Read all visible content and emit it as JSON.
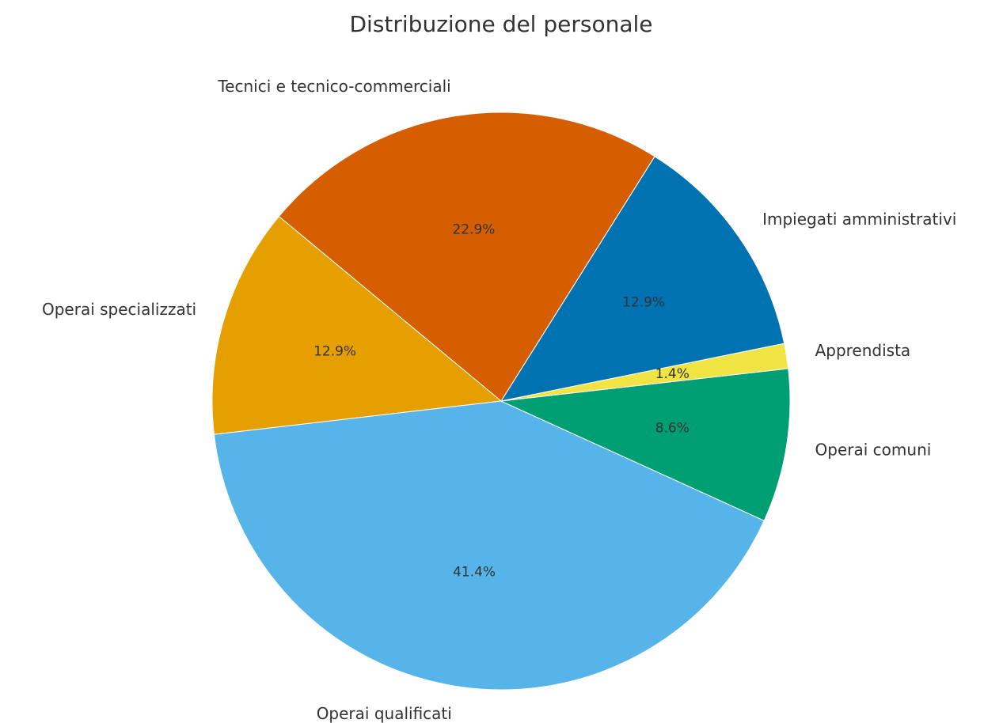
{
  "chart_data": {
    "type": "pie",
    "title": "Distribuzione del personale",
    "categories": [
      "Impiegati amministrativi",
      "Tecnici e tecnico-commerciali",
      "Operai specializzati",
      "Operai qualificati",
      "Operai comuni",
      "Apprendista"
    ],
    "values": [
      12.9,
      22.9,
      12.9,
      41.4,
      8.6,
      1.4
    ],
    "value_labels": [
      "12.9%",
      "22.9%",
      "12.9%",
      "41.4%",
      "8.6%",
      "1.4%"
    ],
    "colors": [
      "#0072b2",
      "#d55e00",
      "#e69f00",
      "#56b4e9",
      "#009e73",
      "#f0e442"
    ]
  }
}
